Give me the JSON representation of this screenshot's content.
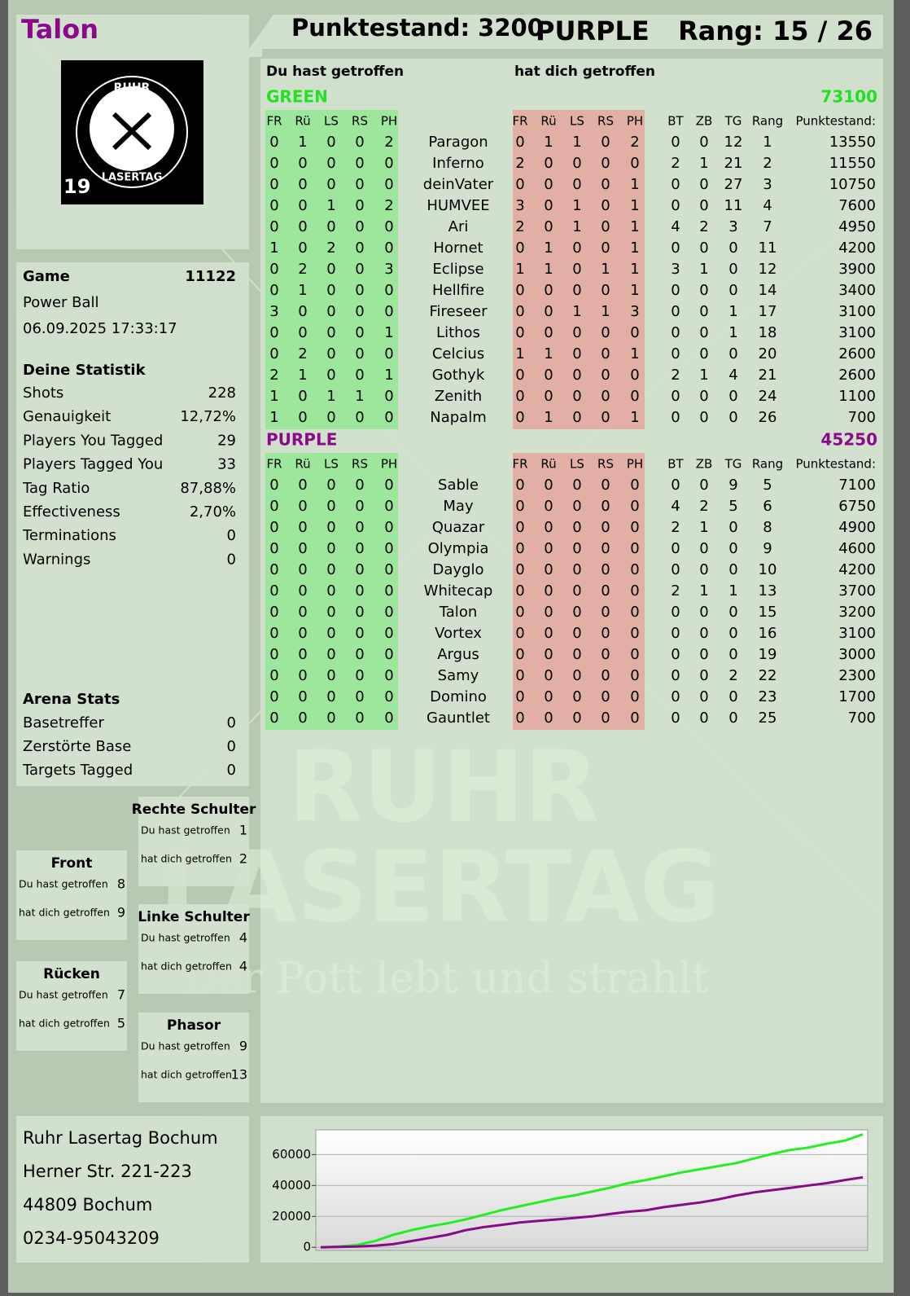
{
  "header": {
    "player": "Talon",
    "score_label": "Punktestand: 3200",
    "team": "PURPLE",
    "rank_label": "Rang: 15 / 26"
  },
  "logo": {
    "line1": "RUHR",
    "line2": "LASERTAG",
    "number": "19"
  },
  "watermark": {
    "line1": "RUHR",
    "line2": "LASERTAG",
    "slogan": "Der Pott lebt und strahlt"
  },
  "game": {
    "label": "Game",
    "id": 11122,
    "mode": "Power Ball",
    "datetime": "06.09.2025 17:33:17"
  },
  "stats": {
    "title": "Deine Statistik",
    "rows": [
      [
        "Shots",
        228
      ],
      [
        "Genauigkeit",
        "12,72%"
      ],
      [
        "Players You Tagged",
        29
      ],
      [
        "Players Tagged You",
        33
      ],
      [
        "Tag Ratio",
        "87,88%"
      ],
      [
        "Effectiveness",
        "2,70%"
      ],
      [
        "Terminations",
        0
      ],
      [
        "Warnings",
        0
      ]
    ]
  },
  "arena": {
    "title": "Arena Stats",
    "rows": [
      [
        "Basetreffer",
        0
      ],
      [
        "Zerstörte Base",
        0
      ],
      [
        "Targets Tagged",
        0
      ]
    ]
  },
  "zones": [
    {
      "name": "Rechte Schulter",
      "rows": [
        [
          "Du hast getroffen",
          1
        ],
        [
          "hat dich getroffen",
          2
        ]
      ]
    },
    {
      "name": "Front",
      "rows": [
        [
          "Du hast getroffen",
          8
        ],
        [
          "hat dich getroffen",
          9
        ]
      ]
    },
    {
      "name": "Linke Schulter",
      "rows": [
        [
          "Du hast getroffen",
          4
        ],
        [
          "hat dich getroffen",
          4
        ]
      ]
    },
    {
      "name": "Rücken",
      "rows": [
        [
          "Du hast getroffen",
          7
        ],
        [
          "hat dich getroffen",
          5
        ]
      ]
    },
    {
      "name": "Phasor",
      "rows": [
        [
          "Du hast getroffen",
          9
        ],
        [
          "hat dich getroffen",
          13
        ]
      ]
    }
  ],
  "address": [
    "Ruhr Lasertag Bochum",
    "Herner Str. 221-223",
    "44809 Bochum",
    "0234-95043209"
  ],
  "teams_header": {
    "you_hit": "Du hast getroffen",
    "hit_you": "hat dich getroffen"
  },
  "columns": [
    "FR",
    "Rü",
    "LS",
    "RS",
    "PH",
    "FR",
    "Rü",
    "LS",
    "RS",
    "PH",
    "BT",
    "ZB",
    "TG",
    "Rang",
    "Punktestand:"
  ],
  "teams": [
    {
      "name": "GREEN",
      "total": 73100,
      "color": "#22e022",
      "rows": [
        [
          0,
          1,
          0,
          0,
          2,
          "Paragon",
          0,
          1,
          1,
          0,
          2,
          0,
          0,
          12,
          1,
          13550
        ],
        [
          0,
          0,
          0,
          0,
          0,
          "Inferno",
          2,
          0,
          0,
          0,
          0,
          2,
          1,
          21,
          2,
          11550
        ],
        [
          0,
          0,
          0,
          0,
          0,
          "deinVater",
          0,
          0,
          0,
          0,
          1,
          0,
          0,
          27,
          3,
          10750
        ],
        [
          0,
          0,
          1,
          0,
          2,
          "HUMVEE",
          3,
          0,
          1,
          0,
          1,
          0,
          0,
          11,
          4,
          7600
        ],
        [
          0,
          0,
          0,
          0,
          0,
          "Ari",
          2,
          0,
          1,
          0,
          1,
          4,
          2,
          3,
          7,
          4950
        ],
        [
          1,
          0,
          2,
          0,
          0,
          "Hornet",
          0,
          1,
          0,
          0,
          1,
          0,
          0,
          0,
          11,
          4200
        ],
        [
          0,
          2,
          0,
          0,
          3,
          "Eclipse",
          1,
          1,
          0,
          1,
          1,
          3,
          1,
          0,
          12,
          3900
        ],
        [
          0,
          1,
          0,
          0,
          0,
          "Hellfire",
          0,
          0,
          0,
          0,
          1,
          0,
          0,
          0,
          14,
          3400
        ],
        [
          3,
          0,
          0,
          0,
          0,
          "Fireseer",
          0,
          0,
          1,
          1,
          3,
          0,
          0,
          1,
          17,
          3100
        ],
        [
          0,
          0,
          0,
          0,
          1,
          "Lithos",
          0,
          0,
          0,
          0,
          0,
          0,
          0,
          1,
          18,
          3100
        ],
        [
          0,
          2,
          0,
          0,
          0,
          "Celcius",
          1,
          1,
          0,
          0,
          1,
          0,
          0,
          0,
          20,
          2600
        ],
        [
          2,
          1,
          0,
          0,
          1,
          "Gothyk",
          0,
          0,
          0,
          0,
          0,
          2,
          1,
          4,
          21,
          2600
        ],
        [
          1,
          0,
          1,
          1,
          0,
          "Zenith",
          0,
          0,
          0,
          0,
          0,
          0,
          0,
          0,
          24,
          1100
        ],
        [
          1,
          0,
          0,
          0,
          0,
          "Napalm",
          0,
          1,
          0,
          0,
          1,
          0,
          0,
          0,
          26,
          700
        ]
      ]
    },
    {
      "name": "PURPLE",
      "total": 45250,
      "color": "#8b0a8b",
      "rows": [
        [
          0,
          0,
          0,
          0,
          0,
          "Sable",
          0,
          0,
          0,
          0,
          0,
          0,
          0,
          9,
          5,
          7100
        ],
        [
          0,
          0,
          0,
          0,
          0,
          "May",
          0,
          0,
          0,
          0,
          0,
          4,
          2,
          5,
          6,
          6750
        ],
        [
          0,
          0,
          0,
          0,
          0,
          "Quazar",
          0,
          0,
          0,
          0,
          0,
          2,
          1,
          0,
          8,
          4900
        ],
        [
          0,
          0,
          0,
          0,
          0,
          "Olympia",
          0,
          0,
          0,
          0,
          0,
          0,
          0,
          0,
          9,
          4600
        ],
        [
          0,
          0,
          0,
          0,
          0,
          "Dayglo",
          0,
          0,
          0,
          0,
          0,
          0,
          0,
          0,
          10,
          4200
        ],
        [
          0,
          0,
          0,
          0,
          0,
          "Whitecap",
          0,
          0,
          0,
          0,
          0,
          2,
          1,
          1,
          13,
          3700
        ],
        [
          0,
          0,
          0,
          0,
          0,
          "Talon",
          0,
          0,
          0,
          0,
          0,
          0,
          0,
          0,
          15,
          3200
        ],
        [
          0,
          0,
          0,
          0,
          0,
          "Vortex",
          0,
          0,
          0,
          0,
          0,
          0,
          0,
          0,
          16,
          3100
        ],
        [
          0,
          0,
          0,
          0,
          0,
          "Argus",
          0,
          0,
          0,
          0,
          0,
          0,
          0,
          0,
          19,
          3000
        ],
        [
          0,
          0,
          0,
          0,
          0,
          "Samy",
          0,
          0,
          0,
          0,
          0,
          0,
          0,
          2,
          22,
          2300
        ],
        [
          0,
          0,
          0,
          0,
          0,
          "Domino",
          0,
          0,
          0,
          0,
          0,
          0,
          0,
          0,
          23,
          1700
        ],
        [
          0,
          0,
          0,
          0,
          0,
          "Gauntlet",
          0,
          0,
          0,
          0,
          0,
          0,
          0,
          0,
          25,
          700
        ]
      ]
    }
  ],
  "chart_data": {
    "type": "line",
    "ylim": [
      -2000,
      76000
    ],
    "yticks": [
      0,
      20000,
      40000,
      60000
    ],
    "grid": true,
    "series": [
      {
        "name": "GREEN",
        "color": "#22ee22",
        "values": [
          0,
          500,
          1500,
          4000,
          8000,
          11000,
          13500,
          15500,
          18000,
          21000,
          24000,
          26500,
          29000,
          31500,
          33500,
          36000,
          38500,
          41500,
          43500,
          46000,
          48500,
          50500,
          52500,
          54500,
          57500,
          60500,
          63000,
          64500,
          67000,
          69000,
          73100
        ]
      },
      {
        "name": "PURPLE",
        "color": "#880a88",
        "values": [
          0,
          200,
          500,
          1000,
          2000,
          4000,
          6000,
          8000,
          11000,
          13000,
          14500,
          16000,
          17000,
          18000,
          19000,
          20000,
          21500,
          23000,
          24000,
          26000,
          27500,
          29000,
          31000,
          33500,
          35500,
          37000,
          38500,
          40000,
          41500,
          43500,
          45250
        ]
      }
    ]
  }
}
